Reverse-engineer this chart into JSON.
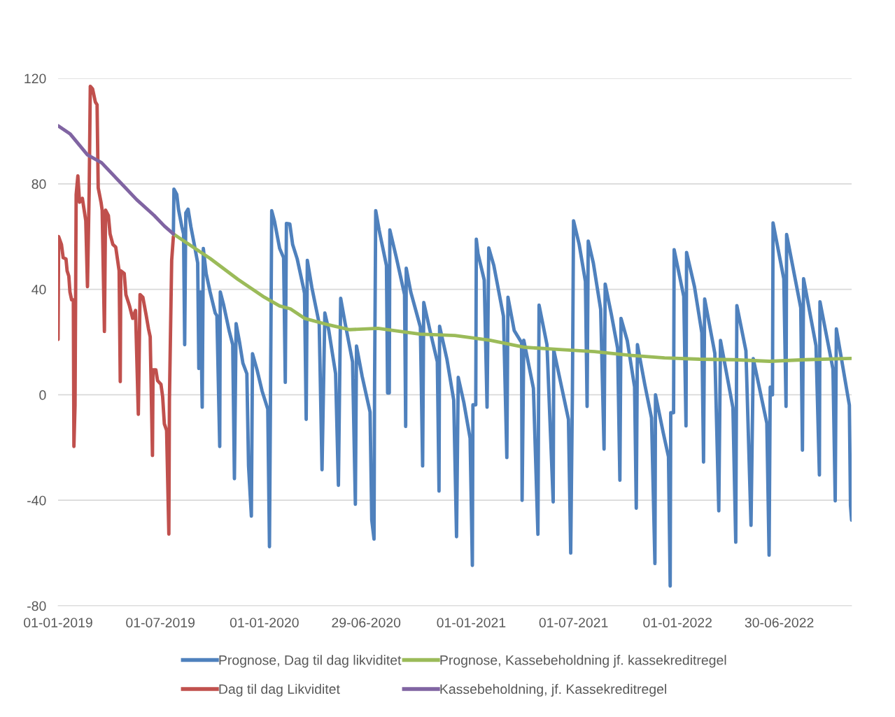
{
  "chart_data": {
    "type": "line",
    "xlim": [
      "2019-01-01",
      "2022-11-05"
    ],
    "xticks": [
      {
        "value": "2019-01-01",
        "label": "01-01-2019"
      },
      {
        "value": "2019-07-01",
        "label": "01-07-2019"
      },
      {
        "value": "2020-01-01",
        "label": "01-01-2020"
      },
      {
        "value": "2020-06-29",
        "label": "29-06-2020"
      },
      {
        "value": "2021-01-01",
        "label": "01-01-2021"
      },
      {
        "value": "2021-07-01",
        "label": "01-07-2021"
      },
      {
        "value": "2022-01-01",
        "label": "01-01-2022"
      },
      {
        "value": "2022-06-30",
        "label": "30-06-2022"
      }
    ],
    "ylim": [
      -80,
      120
    ],
    "yticks": [
      -80,
      -40,
      0,
      40,
      80,
      120
    ],
    "grid": "y",
    "legend": "bottom",
    "marker": "none",
    "line_style": "solid",
    "series": [
      {
        "name": "Prognose, Dag til dag likviditet",
        "color": "#4f81bd",
        "x": [
          "2019-07-24",
          "2019-07-25",
          "2019-07-30",
          "2019-08-02",
          "2019-08-08",
          "2019-08-11",
          "2019-08-13",
          "2019-08-15",
          "2019-08-19",
          "2019-08-24",
          "2019-08-30",
          "2019-09-05",
          "2019-09-07",
          "2019-09-10",
          "2019-09-13",
          "2019-09-15",
          "2019-09-20",
          "2019-09-27",
          "2019-10-06",
          "2019-10-09",
          "2019-10-14",
          "2019-10-15",
          "2019-10-21",
          "2019-10-31",
          "2019-11-06",
          "2019-11-09",
          "2019-11-12",
          "2019-11-18",
          "2019-11-24",
          "2019-12-01",
          "2019-12-04",
          "2019-12-09",
          "2019-12-11",
          "2019-12-19",
          "2019-12-28",
          "2020-01-07",
          "2020-01-10",
          "2020-01-12",
          "2020-01-14",
          "2020-01-19",
          "2020-01-28",
          "2020-02-04",
          "2020-02-07",
          "2020-02-09",
          "2020-02-15",
          "2020-02-20",
          "2020-02-28",
          "2020-03-10",
          "2020-03-12",
          "2020-03-15",
          "2020-03-17",
          "2020-03-25",
          "2020-04-07",
          "2020-04-12",
          "2020-04-17",
          "2020-04-24",
          "2020-05-06",
          "2020-05-11",
          "2020-05-15",
          "2020-05-23",
          "2020-06-05",
          "2020-06-10",
          "2020-06-12",
          "2020-06-22",
          "2020-07-06",
          "2020-07-09",
          "2020-07-13",
          "2020-07-14",
          "2020-07-16",
          "2020-07-22",
          "2020-08-04",
          "2020-08-06",
          "2020-08-09",
          "2020-08-10",
          "2020-08-21",
          "2020-09-05",
          "2020-09-07",
          "2020-09-08",
          "2020-09-16",
          "2020-10-03",
          "2020-10-07",
          "2020-10-09",
          "2020-10-20",
          "2020-11-02",
          "2020-11-05",
          "2020-11-06",
          "2020-11-19",
          "2020-12-01",
          "2020-12-06",
          "2020-12-09",
          "2020-12-19",
          "2020-12-30",
          "2021-01-03",
          "2021-01-04",
          "2021-01-09",
          "2021-01-10",
          "2021-01-13",
          "2021-01-24",
          "2021-01-29",
          "2021-02-01",
          "2021-02-10",
          "2021-02-27",
          "2021-03-05",
          "2021-03-07",
          "2021-03-18",
          "2021-03-31",
          "2021-04-01",
          "2021-04-04",
          "2021-04-21",
          "2021-04-29",
          "2021-05-01",
          "2021-05-15",
          "2021-05-26",
          "2021-05-27",
          "2021-06-22",
          "2021-06-26",
          "2021-06-29",
          "2021-07-01",
          "2021-07-11",
          "2021-07-22",
          "2021-07-25",
          "2021-07-27",
          "2021-08-05",
          "2021-08-18",
          "2021-08-24",
          "2021-08-26",
          "2021-09-06",
          "2021-09-17",
          "2021-09-21",
          "2021-09-23",
          "2021-10-04",
          "2021-10-17",
          "2021-10-20",
          "2021-10-22",
          "2021-11-04",
          "2021-11-16",
          "2021-11-22",
          "2021-11-23",
          "2021-12-07",
          "2021-12-16",
          "2021-12-19",
          "2021-12-20",
          "2021-12-25",
          "2021-12-26",
          "2022-01-12",
          "2022-01-16",
          "2022-01-17",
          "2022-01-31",
          "2022-02-13",
          "2022-02-16",
          "2022-02-18",
          "2022-03-08",
          "2022-03-15",
          "2022-03-18",
          "2022-04-09",
          "2022-04-14",
          "2022-04-16",
          "2022-05-02",
          "2022-05-11",
          "2022-05-15",
          "2022-06-08",
          "2022-06-12",
          "2022-06-14",
          "2022-06-18",
          "2022-06-19",
          "2022-07-08",
          "2022-07-12",
          "2022-07-13",
          "2022-08-07",
          "2022-08-10",
          "2022-08-12",
          "2022-09-03",
          "2022-09-09",
          "2022-09-10",
          "2022-10-03",
          "2022-10-07",
          "2022-10-09",
          "2022-11-01",
          "2022-11-03",
          "2022-11-05"
        ],
        "values": [
          61,
          78,
          76,
          70.4,
          63.7,
          61,
          19,
          69,
          70.4,
          63.7,
          57,
          50,
          10,
          39,
          -4.7,
          55.5,
          46,
          39,
          31,
          30,
          -19.6,
          39,
          34,
          24,
          19,
          -31.8,
          27,
          20,
          12,
          8,
          -27,
          -46,
          15.6,
          9.5,
          1.4,
          -5.4,
          -57.6,
          4,
          69.8,
          65.7,
          55.5,
          52,
          4.7,
          65,
          64.8,
          57,
          51.6,
          40.7,
          38.5,
          -9.3,
          51,
          40.7,
          27,
          -28.4,
          31,
          24.4,
          8,
          -34.3,
          36.6,
          27,
          12.5,
          -41.5,
          18.5,
          7,
          -6.5,
          -47.5,
          -54.7,
          4.4,
          69.8,
          62.5,
          49,
          0.7,
          0.7,
          62.5,
          52.5,
          38,
          -12,
          48,
          39,
          25.7,
          -27,
          35,
          24.4,
          12.5,
          -36.5,
          26,
          13.5,
          -2,
          -53.8,
          6.6,
          -3,
          -16.5,
          -64.7,
          -3.8,
          -3.8,
          59,
          53.5,
          43.5,
          -4.7,
          55.7,
          49,
          29.8,
          -23.8,
          37,
          24.4,
          19.8,
          -40,
          20.7,
          2.5,
          -52.9,
          34,
          19,
          -40.6,
          17,
          -9.3,
          -60,
          0.7,
          66,
          57,
          43,
          -4.4,
          58.3,
          50,
          32.4,
          -20.6,
          42,
          30.4,
          17.6,
          -32.4,
          29,
          20.6,
          3,
          -43,
          19,
          4,
          -8.8,
          -64,
          0,
          -14.7,
          -23.5,
          -72.5,
          -6.8,
          -6.8,
          55,
          37.3,
          -11.8,
          54,
          41,
          23.5,
          -25.5,
          36.3,
          15.7,
          -44,
          20.6,
          -4.9,
          -55.9,
          33.8,
          16.7,
          -49.5,
          13.7,
          -10.8,
          -60.8,
          2.9,
          0,
          65.2,
          44,
          -4.4,
          60.8,
          33,
          -21,
          44,
          18.6,
          -30.4,
          35.3,
          9.8,
          -40.2,
          25,
          -3.9,
          -42,
          -47.5
        ]
      },
      {
        "name": "Dag til dag Likviditet",
        "color": "#c0504d",
        "x": [
          "2019-01-01",
          "2019-01-02",
          "2019-01-07",
          "2019-01-10",
          "2019-01-15",
          "2019-01-17",
          "2019-01-20",
          "2019-01-22",
          "2019-01-25",
          "2019-01-28",
          "2019-01-29",
          "2019-01-31",
          "2019-02-02",
          "2019-02-05",
          "2019-02-08",
          "2019-02-13",
          "2019-02-19",
          "2019-02-22",
          "2019-02-25",
          "2019-02-27",
          "2019-03-03",
          "2019-03-08",
          "2019-03-11",
          "2019-03-13",
          "2019-03-18",
          "2019-03-20",
          "2019-03-24",
          "2019-03-26",
          "2019-03-31",
          "2019-04-03",
          "2019-04-08",
          "2019-04-13",
          "2019-04-19",
          "2019-04-21",
          "2019-04-22",
          "2019-04-28",
          "2019-05-01",
          "2019-05-07",
          "2019-05-13",
          "2019-05-18",
          "2019-05-23",
          "2019-05-26",
          "2019-05-31",
          "2019-06-06",
          "2019-06-10",
          "2019-06-13",
          "2019-06-17",
          "2019-06-18",
          "2019-06-23",
          "2019-06-26",
          "2019-07-02",
          "2019-07-05",
          "2019-07-08",
          "2019-07-12",
          "2019-07-16",
          "2019-07-17",
          "2019-07-21",
          "2019-07-24"
        ],
        "values": [
          21,
          60,
          57,
          52,
          51.5,
          47,
          45,
          39,
          36,
          36,
          -19.6,
          -4,
          76,
          83,
          73,
          74.5,
          66,
          41,
          77,
          117,
          116,
          111,
          110,
          78.5,
          73,
          70,
          24,
          70,
          68,
          61,
          57,
          56,
          47,
          5,
          47,
          46,
          38,
          34,
          29,
          32,
          -7.4,
          38,
          37,
          30,
          25,
          22,
          -23,
          9.5,
          9.5,
          5.4,
          4,
          -0.7,
          -11,
          -13.5,
          -52.8,
          -2,
          51,
          60
        ]
      },
      {
        "name": "Prognose, Kassebeholdning jf. kassekreditregel",
        "color": "#9bbb59",
        "x": [
          "2019-07-24",
          "2019-09-27",
          "2019-11-15",
          "2020-01-01",
          "2020-01-28",
          "2020-02-16",
          "2020-03-12",
          "2020-04-24",
          "2020-05-31",
          "2020-07-20",
          "2020-10-02",
          "2020-12-03",
          "2021-02-03",
          "2021-04-06",
          "2021-06-06",
          "2021-08-07",
          "2021-10-08",
          "2021-12-09",
          "2022-02-09",
          "2022-04-12",
          "2022-06-13",
          "2022-08-14",
          "2022-11-04"
        ],
        "values": [
          61,
          51.7,
          43.8,
          37,
          33.7,
          32.6,
          29,
          26.5,
          24.7,
          25.2,
          23,
          22.5,
          20.7,
          18,
          17.2,
          16.4,
          15,
          14,
          13.5,
          13.3,
          12.7,
          13.3,
          13.8
        ]
      },
      {
        "name": "Kassebeholdning, jf. Kassekreditregel",
        "color": "#8064a2",
        "x": [
          "2019-01-01",
          "2019-01-22",
          "2019-02-22",
          "2019-03-19",
          "2019-04-19",
          "2019-05-20",
          "2019-06-20",
          "2019-07-08",
          "2019-07-24"
        ],
        "values": [
          102,
          99,
          91,
          88,
          81,
          74,
          68,
          64,
          61
        ]
      }
    ]
  }
}
